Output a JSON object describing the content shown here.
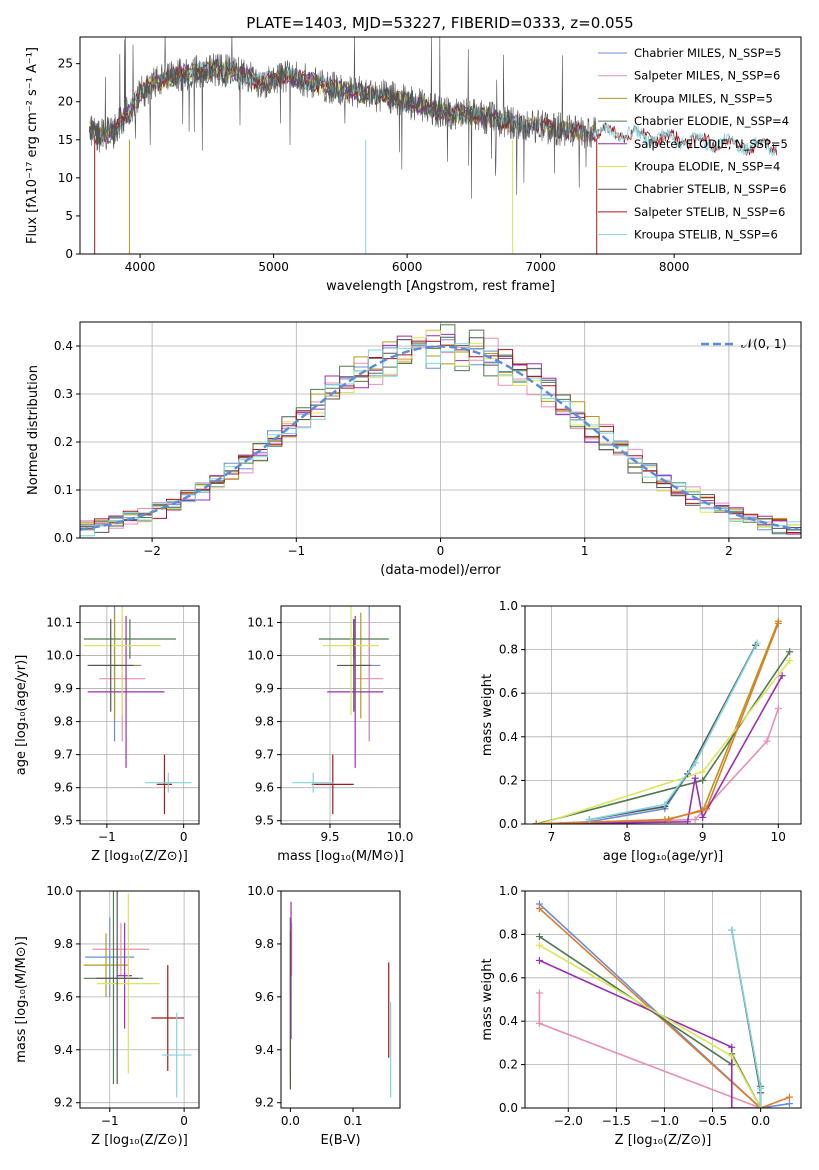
{
  "figure_title": "PLATE=1403, MJD=53227, FIBERID=0333, z=0.055",
  "colors": {
    "Chabrier MILES": "#6a8fd9",
    "Salpeter MILES": "#e88fb6",
    "Kroupa MILES": "#b39a1e",
    "Chabrier ELODIE": "#4f7a4f",
    "Salpeter ELODIE": "#9b2fb3",
    "Kroupa ELODIE": "#d9e65a",
    "Chabrier STELIB": "#555555",
    "Salpeter STELIB": "#a31919",
    "Kroupa STELIB": "#7fd6dd",
    "normal_curve": "#5b8ddb",
    "orange_track": "#e07b2a"
  },
  "chart_data": [
    {
      "type": "line",
      "panel": "spectrum",
      "title": "PLATE=1403, MJD=53227, FIBERID=0333, z=0.055",
      "xlabel": "wavelength [Angstrom, rest frame]",
      "ylabel": "Flux [fλ10⁻¹⁷ erg cm⁻² s⁻¹ A⁻¹]",
      "xlim": [
        3550,
        8950
      ],
      "ylim": [
        0,
        28.5
      ],
      "xticks": [
        "4000",
        "5000",
        "6000",
        "7000",
        "8000"
      ],
      "yticks": [
        "0",
        "5",
        "10",
        "15",
        "20",
        "25"
      ],
      "grid": false,
      "legend_position": "top-right",
      "legend": [
        "Chabrier MILES, N_SSP=5",
        "Salpeter MILES, N_SSP=6",
        "Kroupa MILES, N_SSP=5",
        "Chabrier ELODIE, N_SSP=4",
        "Salpeter ELODIE, N_SSP=5",
        "Kroupa ELODIE, N_SSP=4",
        "Chabrier STELIB, N_SSP=6",
        "Salpeter STELIB, N_SSP=6",
        "Kroupa STELIB, N_SSP=6"
      ],
      "continuum_points": [
        [
          3620,
          16.5
        ],
        [
          3700,
          15.5
        ],
        [
          3800,
          16.0
        ],
        [
          3900,
          18.5
        ],
        [
          4000,
          21.0
        ],
        [
          4100,
          22.5
        ],
        [
          4300,
          23.5
        ],
        [
          4500,
          24.2
        ],
        [
          4700,
          24.0
        ],
        [
          4900,
          22.5
        ],
        [
          5100,
          23.5
        ],
        [
          5300,
          22.5
        ],
        [
          5500,
          21.5
        ],
        [
          5700,
          21.0
        ],
        [
          5900,
          20.5
        ],
        [
          6100,
          19.5
        ],
        [
          6300,
          18.5
        ],
        [
          6500,
          18.2
        ],
        [
          6700,
          17.5
        ],
        [
          6900,
          17.0
        ],
        [
          7100,
          16.5
        ],
        [
          7300,
          16.0
        ],
        [
          7500,
          16.0
        ],
        [
          7800,
          15.5
        ],
        [
          8100,
          15.0
        ],
        [
          8400,
          14.5
        ],
        [
          8770,
          14.0
        ]
      ],
      "drop_lines": [
        3660,
        3920,
        5690,
        6790,
        7420
      ]
    },
    {
      "type": "line",
      "panel": "residual_histogram",
      "xlabel": "(data-model)/error",
      "ylabel": "Normed distribution",
      "xlim": [
        -2.5,
        2.5
      ],
      "ylim": [
        0,
        0.45
      ],
      "xticks": [
        "−2",
        "−1",
        "0",
        "1",
        "2"
      ],
      "yticks": [
        "0.0",
        "0.1",
        "0.2",
        "0.3",
        "0.4"
      ],
      "grid": true,
      "legend_position": "top-right",
      "legend": [
        "𝒩(0, 1)"
      ],
      "bin_width": 0.1
    },
    {
      "type": "scatter",
      "panel": "age_vs_Z",
      "xlabel": "Z [log₁₀(Z/Z⊙)]",
      "ylabel": "age  [log₁₀(age/yr)]",
      "xlim": [
        -1.35,
        0.2
      ],
      "ylim": [
        9.49,
        10.15
      ],
      "xticks": [
        "−1",
        "0"
      ],
      "yticks": [
        "9.5",
        "9.6",
        "9.7",
        "9.8",
        "9.9",
        "10.0",
        "10.1"
      ],
      "grid": true,
      "points": [
        {
          "series": "Chabrier MILES",
          "x": -0.9,
          "y": 9.97,
          "xerr": 0.35,
          "yerr": 0.23
        },
        {
          "series": "Salpeter MILES",
          "x": -0.8,
          "y": 9.93,
          "xerr": 0.3,
          "yerr": 0.19
        },
        {
          "series": "Kroupa MILES",
          "x": -0.9,
          "y": 9.97,
          "xerr": 0.32,
          "yerr": 0.16
        },
        {
          "series": "Chabrier ELODIE",
          "x": -0.7,
          "y": 10.05,
          "xerr": 0.6,
          "yerr": 0.06
        },
        {
          "series": "Salpeter ELODIE",
          "x": -0.75,
          "y": 9.89,
          "xerr": 0.5,
          "yerr": 0.23
        },
        {
          "series": "Kroupa ELODIE",
          "x": -0.8,
          "y": 10.03,
          "xerr": 0.5,
          "yerr": 0.21
        },
        {
          "series": "Chabrier STELIB",
          "x": -0.95,
          "y": 9.97,
          "xerr": 0.3,
          "yerr": 0.14
        },
        {
          "series": "Salpeter STELIB",
          "x": -0.25,
          "y": 9.61,
          "xerr": 0.1,
          "yerr": 0.09
        },
        {
          "series": "Kroupa STELIB",
          "x": -0.2,
          "y": 9.615,
          "xerr": 0.3,
          "yerr": 0.03
        }
      ]
    },
    {
      "type": "scatter",
      "panel": "age_vs_mass",
      "xlabel": "mass [log₁₀(M/M⊙)]",
      "ylabel": "",
      "xlim": [
        9.15,
        10.0
      ],
      "ylim": [
        9.49,
        10.15
      ],
      "xticks": [
        "9.5",
        "10.0"
      ],
      "yticks": [
        "9.5",
        "9.6",
        "9.7",
        "9.8",
        "9.9",
        "10.0",
        "10.1"
      ],
      "grid": true,
      "points": [
        {
          "series": "Chabrier MILES",
          "x": 9.78,
          "y": 9.97,
          "xerr": 0.08,
          "yerr": 0.23
        },
        {
          "series": "Salpeter MILES",
          "x": 9.78,
          "y": 9.93,
          "xerr": 0.1,
          "yerr": 0.19
        },
        {
          "series": "Kroupa MILES",
          "x": 9.72,
          "y": 9.97,
          "xerr": 0.08,
          "yerr": 0.16
        },
        {
          "series": "Chabrier ELODIE",
          "x": 9.67,
          "y": 10.05,
          "xerr": 0.25,
          "yerr": 0.06
        },
        {
          "series": "Salpeter ELODIE",
          "x": 9.68,
          "y": 9.89,
          "xerr": 0.2,
          "yerr": 0.23
        },
        {
          "series": "Kroupa ELODIE",
          "x": 9.65,
          "y": 10.03,
          "xerr": 0.2,
          "yerr": 0.21
        },
        {
          "series": "Chabrier STELIB",
          "x": 9.67,
          "y": 9.97,
          "xerr": 0.12,
          "yerr": 0.14
        },
        {
          "series": "Salpeter STELIB",
          "x": 9.52,
          "y": 9.61,
          "xerr": 0.15,
          "yerr": 0.09
        },
        {
          "series": "Kroupa STELIB",
          "x": 9.38,
          "y": 9.615,
          "xerr": 0.15,
          "yerr": 0.03
        }
      ]
    },
    {
      "type": "line",
      "panel": "mass_weight_vs_age",
      "xlabel": "age  [log₁₀(age/yr)]",
      "ylabel": "mass weight",
      "xlim": [
        6.65,
        10.3
      ],
      "ylim": [
        0,
        1.0
      ],
      "xticks": [
        "7",
        "8",
        "9",
        "10"
      ],
      "yticks": [
        "0.0",
        "0.2",
        "0.4",
        "0.6",
        "0.8",
        "1.0"
      ],
      "grid": true,
      "series": [
        {
          "color_key": "Chabrier MILES",
          "points": [
            [
              6.8,
              0.0
            ],
            [
              7.5,
              0.01
            ],
            [
              8.5,
              0.07
            ],
            [
              8.9,
              0.28
            ],
            [
              9.7,
              0.82
            ]
          ]
        },
        {
          "color_key": "Salpeter MILES",
          "points": [
            [
              6.8,
              0.0
            ],
            [
              8.9,
              0.02
            ],
            [
              9.85,
              0.38
            ],
            [
              10.0,
              0.53
            ]
          ]
        },
        {
          "color_key": "Kroupa MILES",
          "points": [
            [
              6.8,
              0.0
            ],
            [
              8.5,
              0.02
            ],
            [
              9.0,
              0.06
            ],
            [
              10.0,
              0.93
            ]
          ]
        },
        {
          "color_key": "Chabrier ELODIE",
          "points": [
            [
              6.8,
              0.0
            ],
            [
              9.0,
              0.2
            ],
            [
              10.15,
              0.79
            ]
          ]
        },
        {
          "color_key": "Salpeter ELODIE",
          "points": [
            [
              6.8,
              0.0
            ],
            [
              8.8,
              0.01
            ],
            [
              8.9,
              0.21
            ],
            [
              9.0,
              0.03
            ],
            [
              10.05,
              0.68
            ]
          ]
        },
        {
          "color_key": "Kroupa ELODIE",
          "points": [
            [
              6.85,
              0.0
            ],
            [
              9.0,
              0.24
            ],
            [
              10.15,
              0.75
            ]
          ]
        },
        {
          "color_key": "Chabrier STELIB",
          "points": [
            [
              7.5,
              0.02
            ],
            [
              8.5,
              0.08
            ],
            [
              8.8,
              0.23
            ],
            [
              9.7,
              0.82
            ]
          ]
        },
        {
          "color_key": "orange_track",
          "points": [
            [
              6.8,
              0.0
            ],
            [
              8.55,
              0.02
            ],
            [
              9.05,
              0.07
            ],
            [
              10.0,
              0.92
            ]
          ]
        },
        {
          "color_key": "Kroupa STELIB",
          "points": [
            [
              7.5,
              0.02
            ],
            [
              8.5,
              0.09
            ],
            [
              8.9,
              0.28
            ],
            [
              9.72,
              0.83
            ]
          ]
        }
      ]
    },
    {
      "type": "scatter",
      "panel": "mass_vs_Z",
      "xlabel": "Z [log₁₀(Z/Z⊙)]",
      "ylabel": "mass [log₁₀(M/M⊙)]",
      "xlim": [
        -1.4,
        0.2
      ],
      "ylim": [
        9.18,
        10.0
      ],
      "xticks": [
        "−1",
        "0"
      ],
      "yticks": [
        "9.2",
        "9.4",
        "9.6",
        "9.8",
        "10.0"
      ],
      "grid": true,
      "points": [
        {
          "series": "Chabrier MILES",
          "x": -1.0,
          "y": 9.75,
          "xerr": 0.33,
          "yerr": 0.15
        },
        {
          "series": "Salpeter MILES",
          "x": -0.85,
          "y": 9.78,
          "xerr": 0.38,
          "yerr": 0.1
        },
        {
          "series": "Kroupa MILES",
          "x": -1.05,
          "y": 9.72,
          "xerr": 0.3,
          "yerr": 0.12
        },
        {
          "series": "Chabrier ELODIE",
          "x": -0.95,
          "y": 9.67,
          "xerr": 0.4,
          "yerr": 0.4
        },
        {
          "series": "Salpeter ELODIE",
          "x": -0.8,
          "y": 9.68,
          "xerr": 0.1,
          "yerr": 0.2
        },
        {
          "series": "Kroupa ELODIE",
          "x": -0.75,
          "y": 9.65,
          "xerr": 0.42,
          "yerr": 0.34
        },
        {
          "series": "Chabrier STELIB",
          "x": -0.9,
          "y": 9.67,
          "xerr": 0.28,
          "yerr": 0.4
        },
        {
          "series": "Salpeter STELIB",
          "x": -0.22,
          "y": 9.52,
          "xerr": 0.22,
          "yerr": 0.2
        },
        {
          "series": "Kroupa STELIB",
          "x": -0.1,
          "y": 9.38,
          "xerr": 0.2,
          "yerr": 0.16
        }
      ]
    },
    {
      "type": "scatter",
      "panel": "mass_vs_EBV",
      "xlabel": "E(B-V)",
      "ylabel": "",
      "xlim": [
        -0.015,
        0.175
      ],
      "ylim": [
        9.18,
        10.0
      ],
      "xticks": [
        "0.0",
        "0.1"
      ],
      "yticks": [
        "9.2",
        "9.4",
        "9.6",
        "9.8",
        "10.0"
      ],
      "grid": false,
      "points": [
        {
          "series": "Chabrier MILES",
          "x": 0.0,
          "y": 9.75,
          "xerr": 0,
          "yerr": 0.15
        },
        {
          "series": "Salpeter MILES",
          "x": 0.002,
          "y": 9.78,
          "xerr": 0,
          "yerr": 0.1
        },
        {
          "series": "Kroupa MILES",
          "x": 0.0,
          "y": 9.72,
          "xerr": 0,
          "yerr": 0.12
        },
        {
          "series": "Chabrier ELODIE",
          "x": 0.0,
          "y": 9.6,
          "xerr": 0,
          "yerr": 0.3
        },
        {
          "series": "Salpeter ELODIE",
          "x": 0.001,
          "y": 9.7,
          "xerr": 0,
          "yerr": 0.26
        },
        {
          "series": "Kroupa ELODIE",
          "x": 0.0,
          "y": 9.55,
          "xerr": 0,
          "yerr": 0.3
        },
        {
          "series": "Chabrier STELIB",
          "x": 0.0,
          "y": 9.55,
          "xerr": 0,
          "yerr": 0.3
        },
        {
          "series": "Salpeter STELIB",
          "x": 0.157,
          "y": 9.55,
          "xerr": 0,
          "yerr": 0.18
        },
        {
          "series": "Kroupa STELIB",
          "x": 0.16,
          "y": 9.4,
          "xerr": 0,
          "yerr": 0.18
        }
      ]
    },
    {
      "type": "line",
      "panel": "mass_weight_vs_Z",
      "xlabel": "Z [log₁₀(Z/Z⊙)]",
      "ylabel": "mass weight",
      "xlim": [
        -2.45,
        0.42
      ],
      "ylim": [
        0,
        1.0
      ],
      "xticks": [
        "−2.0",
        "−1.5",
        "−1.0",
        "−0.5",
        "0.0"
      ],
      "yticks": [
        "0.0",
        "0.2",
        "0.4",
        "0.6",
        "0.8",
        "1.0"
      ],
      "grid": true,
      "series": [
        {
          "color_key": "Chabrier MILES",
          "points": [
            [
              -2.3,
              0.94
            ],
            [
              0.0,
              0.0
            ],
            [
              0.3,
              0.02
            ]
          ]
        },
        {
          "color_key": "Salpeter MILES",
          "points": [
            [
              -2.3,
              0.53
            ],
            [
              -2.3,
              0.39
            ],
            [
              0.0,
              0.0
            ],
            [
              0.0,
              0.07
            ]
          ]
        },
        {
          "color_key": "orange_track",
          "points": [
            [
              -2.3,
              0.92
            ],
            [
              0.0,
              0.0
            ],
            [
              0.3,
              0.05
            ]
          ]
        },
        {
          "color_key": "Chabrier ELODIE",
          "points": [
            [
              -2.3,
              0.79
            ],
            [
              -0.3,
              0.2
            ],
            [
              -0.3,
              0.25
            ],
            [
              0.0,
              0.0
            ],
            [
              0.0,
              0.1
            ]
          ]
        },
        {
          "color_key": "Salpeter ELODIE",
          "points": [
            [
              -2.3,
              0.68
            ],
            [
              -0.3,
              0.28
            ],
            [
              -0.3,
              0.0
            ],
            [
              0.0,
              0.0
            ]
          ]
        },
        {
          "color_key": "Kroupa ELODIE",
          "points": [
            [
              -2.3,
              0.75
            ],
            [
              -0.3,
              0.24
            ],
            [
              0.0,
              0.0
            ]
          ]
        },
        {
          "color_key": "Chabrier STELIB",
          "points": [
            [
              -0.3,
              0.82
            ],
            [
              0.0,
              0.07
            ],
            [
              0.0,
              0.0
            ]
          ]
        },
        {
          "color_key": "Kroupa STELIB",
          "points": [
            [
              -0.3,
              0.82
            ],
            [
              0.0,
              0.09
            ],
            [
              0.0,
              0.0
            ]
          ]
        }
      ]
    }
  ]
}
